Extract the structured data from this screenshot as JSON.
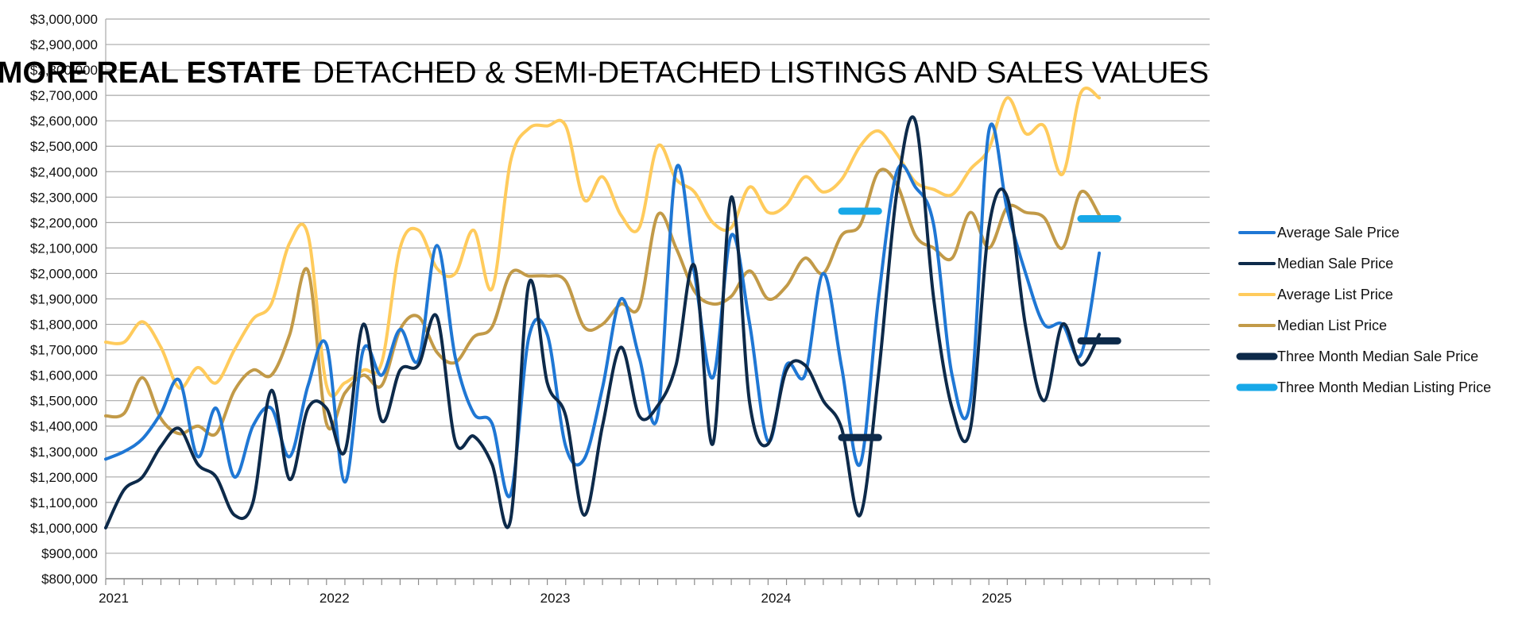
{
  "chart_data": {
    "type": "line",
    "title_bold": "CANMORE REAL ESTATE",
    "title_rest": "DETACHED & SEMI-DETACHED LISTINGS AND SALES VALUES",
    "xlabel": "",
    "ylabel": "",
    "ylim": [
      800000,
      3000000
    ],
    "y_step": 100000,
    "y_ticks": [
      "$800,000",
      "$900,000",
      "$1,000,000",
      "$1,100,000",
      "$1,200,000",
      "$1,300,000",
      "$1,400,000",
      "$1,500,000",
      "$1,600,000",
      "$1,700,000",
      "$1,800,000",
      "$1,900,000",
      "$2,000,000",
      "$2,100,000",
      "$2,200,000",
      "$2,300,000",
      "$2,400,000",
      "$2,500,000",
      "$2,600,000",
      "$2,700,000",
      "$2,800,000",
      "$2,900,000",
      "$3,000,000"
    ],
    "x_tick_labels": [
      "2021",
      "2022",
      "2023",
      "2024",
      "2025"
    ],
    "x_start": "2021-01",
    "x_months": 60,
    "grid": true,
    "legend_position": "right",
    "series": [
      {
        "name": "Average Sale Price",
        "color": "#1f77d4",
        "width": 3,
        "values": [
          1270000,
          1300000,
          1350000,
          1450000,
          1580000,
          1280000,
          1470000,
          1200000,
          1400000,
          1470000,
          1280000,
          1560000,
          1720000,
          1180000,
          1700000,
          1600000,
          1780000,
          1660000,
          2110000,
          1670000,
          1450000,
          1410000,
          1130000,
          1750000,
          1760000,
          1320000,
          1270000,
          1550000,
          1900000,
          1670000,
          1440000,
          2410000,
          2000000,
          1590000,
          2150000,
          1800000,
          1340000,
          1640000,
          1600000,
          2000000,
          1630000,
          1250000,
          1900000,
          2400000,
          2340000,
          2190000,
          1600000,
          1500000,
          2560000,
          2250000,
          2000000,
          1800000,
          1800000,
          1680000,
          2080000
        ]
      },
      {
        "name": "Median Sale Price",
        "color": "#0d2a4a",
        "width": 3,
        "values": [
          1000000,
          1150000,
          1200000,
          1320000,
          1390000,
          1250000,
          1200000,
          1050000,
          1100000,
          1540000,
          1190000,
          1470000,
          1470000,
          1300000,
          1800000,
          1420000,
          1620000,
          1640000,
          1830000,
          1340000,
          1360000,
          1250000,
          1030000,
          1960000,
          1570000,
          1440000,
          1050000,
          1400000,
          1710000,
          1440000,
          1480000,
          1640000,
          2030000,
          1330000,
          2300000,
          1490000,
          1330000,
          1620000,
          1640000,
          1500000,
          1390000,
          1050000,
          1600000,
          2320000,
          2600000,
          1900000,
          1470000,
          1390000,
          2180000,
          2300000,
          1790000,
          1500000,
          1800000,
          1640000,
          1760000
        ]
      },
      {
        "name": "Average List Price",
        "color": "#ffcb5c",
        "width": 3,
        "values": [
          1730000,
          1730000,
          1810000,
          1710000,
          1550000,
          1630000,
          1570000,
          1700000,
          1820000,
          1880000,
          2120000,
          2150000,
          1560000,
          1570000,
          1620000,
          1650000,
          2100000,
          2170000,
          2020000,
          2000000,
          2170000,
          1940000,
          2440000,
          2570000,
          2580000,
          2580000,
          2290000,
          2380000,
          2230000,
          2180000,
          2500000,
          2370000,
          2320000,
          2200000,
          2180000,
          2340000,
          2240000,
          2270000,
          2380000,
          2320000,
          2370000,
          2500000,
          2560000,
          2470000,
          2360000,
          2330000,
          2310000,
          2410000,
          2490000,
          2690000,
          2550000,
          2580000,
          2390000,
          2710000,
          2690000
        ]
      },
      {
        "name": "Median List Price",
        "color": "#c29a48",
        "width": 3,
        "values": [
          1440000,
          1450000,
          1590000,
          1430000,
          1370000,
          1400000,
          1370000,
          1540000,
          1620000,
          1600000,
          1760000,
          2010000,
          1410000,
          1530000,
          1600000,
          1560000,
          1780000,
          1830000,
          1690000,
          1650000,
          1750000,
          1790000,
          2000000,
          1990000,
          1990000,
          1970000,
          1790000,
          1800000,
          1880000,
          1870000,
          2230000,
          2100000,
          1930000,
          1880000,
          1910000,
          2010000,
          1900000,
          1950000,
          2060000,
          2000000,
          2150000,
          2190000,
          2400000,
          2350000,
          2150000,
          2100000,
          2060000,
          2240000,
          2100000,
          2260000,
          2240000,
          2220000,
          2100000,
          2320000,
          2230000
        ]
      }
    ],
    "segments": [
      {
        "name": "Three Month Median Sale Price",
        "color": "#0d2a4a",
        "width": 9,
        "items": [
          {
            "x": [
              40,
              42
            ],
            "y": 1355000
          },
          {
            "x": [
              53,
              55
            ],
            "y": 1735000
          }
        ]
      },
      {
        "name": "Three Month Median Listing Price",
        "color": "#17a8e8",
        "width": 9,
        "items": [
          {
            "x": [
              40,
              42
            ],
            "y": 2245000
          },
          {
            "x": [
              53,
              55
            ],
            "y": 2215000
          }
        ]
      }
    ]
  }
}
